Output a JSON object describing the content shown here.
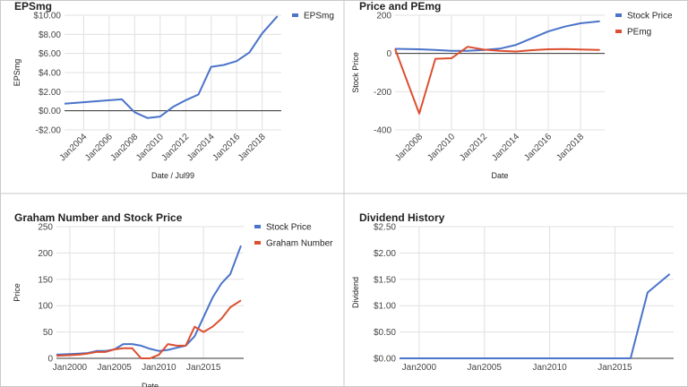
{
  "chart_data": [
    {
      "type": "line",
      "title": "EPSmg",
      "xlabel": "Date / Jul99",
      "ylabel": "EPSmg",
      "x_range": [
        2002.5,
        2019.5
      ],
      "ylim": [
        -2,
        10
      ],
      "yticks": [
        -2,
        0,
        2,
        4,
        6,
        8,
        10
      ],
      "ytick_labels": [
        "-$2.00",
        "$0.00",
        "$2.00",
        "$4.00",
        "$6.00",
        "$8.00",
        "$10.00"
      ],
      "xticks": [
        2004,
        2006,
        2008,
        2010,
        2012,
        2014,
        2016,
        2018
      ],
      "xtick_labels": [
        "Jan2004",
        "Jan2006",
        "Jan2008",
        "Jan2010",
        "Jan2012",
        "Jan2014",
        "Jan2016",
        "Jan2018"
      ],
      "x_rotated": true,
      "grid": true,
      "zero_line": true,
      "legend": "right",
      "series": [
        {
          "name": "EPSmg",
          "color": "#4a73c9",
          "x": [
            2002.5,
            2004,
            2005,
            2006,
            2007,
            2008,
            2009,
            2010,
            2011,
            2012,
            2013,
            2014,
            2015,
            2016,
            2017,
            2018,
            2019.2
          ],
          "y": [
            0.75,
            0.9,
            1.0,
            1.1,
            1.2,
            -0.15,
            -0.75,
            -0.6,
            0.4,
            1.1,
            1.7,
            4.6,
            4.8,
            5.2,
            6.1,
            8.1,
            9.9
          ]
        }
      ]
    },
    {
      "type": "line",
      "title": "Price and PEmg",
      "xlabel": "Date",
      "ylabel": "Stock Price",
      "x_range": [
        2006.5,
        2019.5
      ],
      "ylim": [
        -400,
        200
      ],
      "yticks": [
        -400,
        -200,
        0,
        200
      ],
      "ytick_labels": [
        "-400",
        "-200",
        "0",
        "200"
      ],
      "xticks": [
        2008,
        2010,
        2012,
        2014,
        2016,
        2018
      ],
      "xtick_labels": [
        "Jan2008",
        "Jan2010",
        "Jan2012",
        "Jan2014",
        "Jan2016",
        "Jan2018"
      ],
      "x_rotated": true,
      "grid": true,
      "zero_line": true,
      "legend": "right",
      "series": [
        {
          "name": "Stock Price",
          "color": "#4a73c9",
          "x": [
            2006.5,
            2008,
            2009,
            2010,
            2011,
            2012,
            2013,
            2014,
            2015,
            2016,
            2017,
            2018,
            2019.2
          ],
          "y": [
            24,
            22,
            18,
            14,
            14,
            18,
            25,
            45,
            80,
            115,
            140,
            158,
            168
          ]
        },
        {
          "name": "PEmg",
          "color": "#dc4f30",
          "x": [
            2006.5,
            2008,
            2009,
            2010,
            2011,
            2012,
            2013,
            2014,
            2015,
            2016,
            2017,
            2018,
            2019.2
          ],
          "y": [
            24,
            -315,
            -28,
            -25,
            35,
            20,
            14,
            10,
            17,
            22,
            23,
            21,
            18
          ]
        }
      ]
    },
    {
      "type": "line",
      "title": "Graham Number and Stock Price",
      "xlabel": "Date",
      "ylabel": "Price",
      "x_range": [
        1998.5,
        2019.5
      ],
      "ylim": [
        0,
        250
      ],
      "yticks": [
        0,
        50,
        100,
        150,
        200,
        250
      ],
      "ytick_labels": [
        "0",
        "50",
        "100",
        "150",
        "200",
        "250"
      ],
      "xticks": [
        2000,
        2005,
        2010,
        2015
      ],
      "xtick_labels": [
        "Jan2000",
        "Jan2005",
        "Jan2010",
        "Jan2015"
      ],
      "x_rotated": false,
      "grid": true,
      "legend": "right",
      "series": [
        {
          "name": "Stock Price",
          "color": "#4a73c9",
          "x": [
            1998.5,
            2000,
            2001,
            2002,
            2003,
            2004,
            2005,
            2006,
            2007,
            2008,
            2009,
            2010,
            2011,
            2012,
            2013,
            2014,
            2015,
            2016,
            2017,
            2018,
            2019.2
          ],
          "y": [
            7,
            8,
            9,
            10,
            14,
            14,
            17,
            27,
            27,
            24,
            18,
            14,
            16,
            20,
            24,
            42,
            78,
            115,
            142,
            160,
            214
          ]
        },
        {
          "name": "Graham Number",
          "color": "#dc4f30",
          "x": [
            1998.5,
            2000,
            2001,
            2002,
            2003,
            2004,
            2005,
            2006,
            2007,
            2008,
            2009,
            2010,
            2011,
            2012,
            2013,
            2014,
            2015,
            2016,
            2017,
            2018,
            2019.2
          ],
          "y": [
            5,
            6,
            7,
            9,
            12,
            12,
            17,
            19,
            19,
            0,
            0,
            7,
            27,
            24,
            24,
            60,
            50,
            60,
            75,
            97,
            110
          ]
        }
      ]
    },
    {
      "type": "line",
      "title": "Dividend History",
      "xlabel": "",
      "ylabel": "Dividend",
      "x_range": [
        1998.5,
        2019.5
      ],
      "ylim": [
        0,
        2.5
      ],
      "yticks": [
        0,
        0.5,
        1,
        1.5,
        2,
        2.5
      ],
      "ytick_labels": [
        "$0.00",
        "$0.50",
        "$1.00",
        "$1.50",
        "$2.00",
        "$2.50"
      ],
      "xticks": [
        2000,
        2005,
        2010,
        2015
      ],
      "xtick_labels": [
        "Jan2000",
        "Jan2005",
        "Jan2010",
        "Jan2015"
      ],
      "x_rotated": false,
      "grid": true,
      "legend": "none",
      "series": [
        {
          "name": "",
          "color": "#4a73c9",
          "x": [
            1998.5,
            2000,
            2005,
            2010,
            2015,
            2016.2,
            2017.5,
            2019.2
          ],
          "y": [
            0,
            0,
            0,
            0,
            0,
            0,
            1.25,
            1.6
          ]
        }
      ]
    }
  ]
}
